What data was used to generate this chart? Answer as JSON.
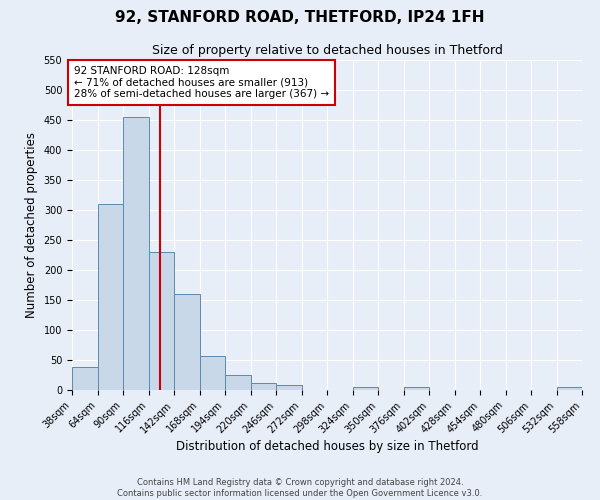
{
  "title": "92, STANFORD ROAD, THETFORD, IP24 1FH",
  "subtitle": "Size of property relative to detached houses in Thetford",
  "xlabel": "Distribution of detached houses by size in Thetford",
  "ylabel": "Number of detached properties",
  "bin_edges": [
    38,
    64,
    90,
    116,
    142,
    168,
    194,
    220,
    246,
    272,
    298,
    324,
    350,
    376,
    402,
    428,
    454,
    480,
    506,
    532,
    558
  ],
  "bar_heights": [
    38,
    310,
    455,
    230,
    160,
    57,
    25,
    12,
    8,
    0,
    0,
    5,
    0,
    5,
    0,
    0,
    0,
    0,
    0,
    5
  ],
  "bar_color": "#c8d8e8",
  "bar_edgecolor": "#5a8ab0",
  "property_size": 128,
  "vline_color": "#cc0000",
  "annotation_line1": "92 STANFORD ROAD: 128sqm",
  "annotation_line2": "← 71% of detached houses are smaller (913)",
  "annotation_line3": "28% of semi-detached houses are larger (367) →",
  "annotation_box_edgecolor": "#cc0000",
  "annotation_box_facecolor": "#ffffff",
  "ylim": [
    0,
    550
  ],
  "yticks": [
    0,
    50,
    100,
    150,
    200,
    250,
    300,
    350,
    400,
    450,
    500,
    550
  ],
  "footer_line1": "Contains HM Land Registry data © Crown copyright and database right 2024.",
  "footer_line2": "Contains public sector information licensed under the Open Government Licence v3.0.",
  "background_color": "#e8eef8",
  "grid_color": "#ffffff",
  "title_fontsize": 11,
  "subtitle_fontsize": 9,
  "tick_label_fontsize": 7,
  "axis_label_fontsize": 8.5,
  "footer_fontsize": 6
}
